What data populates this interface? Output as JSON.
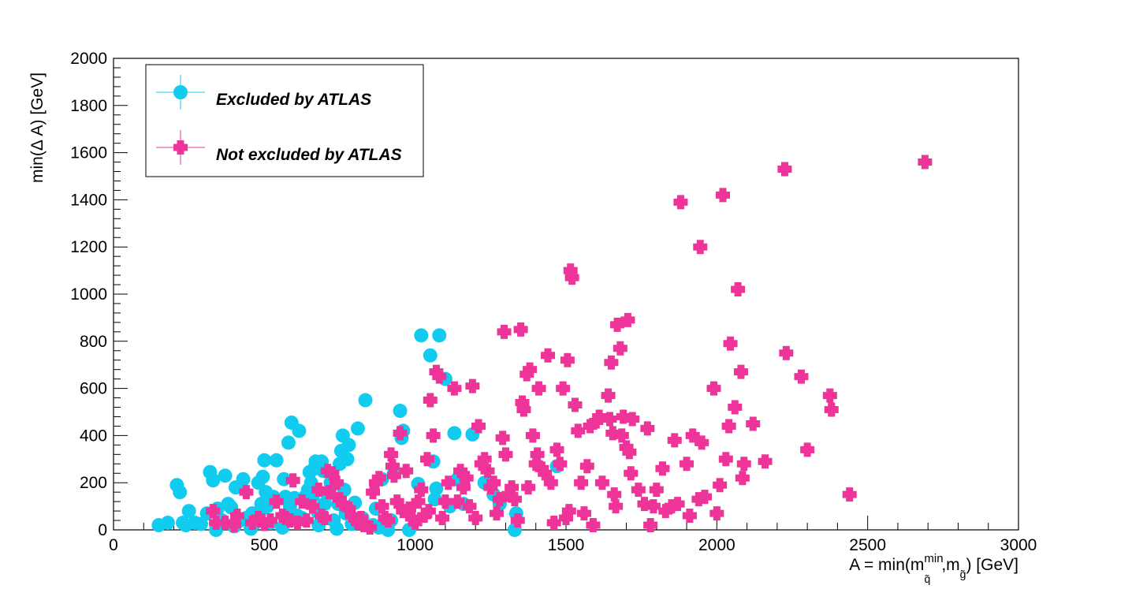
{
  "chart_data": {
    "type": "scatter",
    "title": "",
    "xlabel_prefix": "A = min(m",
    "xlabel_sup": "min",
    "xlabel_sub1": "q̃",
    "xlabel_mid": ",m",
    "xlabel_sub2": "g̃",
    "xlabel_suffix": ") [GeV]",
    "ylabel": "min(Δ A) [GeV]",
    "xlim": [
      0,
      3000
    ],
    "ylim": [
      0,
      2000
    ],
    "x_ticks": [
      "0",
      "500",
      "1000",
      "1500",
      "2000",
      "2500",
      "3000"
    ],
    "y_ticks": [
      "0",
      "200",
      "400",
      "600",
      "800",
      "1000",
      "1200",
      "1400",
      "1600",
      "1800",
      "2000"
    ],
    "grid": false,
    "legend_position": "top-left",
    "series": [
      {
        "name": "Excluded by ATLAS",
        "marker": "circle",
        "color": "#11CCEE",
        "points": [
          [
            150,
            20
          ],
          [
            180,
            30
          ],
          [
            210,
            190
          ],
          [
            220,
            160
          ],
          [
            230,
            30
          ],
          [
            240,
            20
          ],
          [
            250,
            80
          ],
          [
            270,
            30
          ],
          [
            290,
            25
          ],
          [
            310,
            70
          ],
          [
            320,
            245
          ],
          [
            330,
            210
          ],
          [
            340,
            0
          ],
          [
            345,
            90
          ],
          [
            360,
            40
          ],
          [
            370,
            230
          ],
          [
            380,
            110
          ],
          [
            390,
            95
          ],
          [
            400,
            15
          ],
          [
            405,
            180
          ],
          [
            420,
            40
          ],
          [
            430,
            215
          ],
          [
            440,
            50
          ],
          [
            455,
            5
          ],
          [
            460,
            70
          ],
          [
            470,
            30
          ],
          [
            480,
            200
          ],
          [
            485,
            75
          ],
          [
            490,
            110
          ],
          [
            495,
            225
          ],
          [
            500,
            295
          ],
          [
            505,
            160
          ],
          [
            510,
            100
          ],
          [
            520,
            30
          ],
          [
            530,
            140
          ],
          [
            540,
            295
          ],
          [
            560,
            10
          ],
          [
            565,
            215
          ],
          [
            570,
            140
          ],
          [
            575,
            40
          ],
          [
            580,
            370
          ],
          [
            585,
            100
          ],
          [
            590,
            455
          ],
          [
            600,
            135
          ],
          [
            610,
            60
          ],
          [
            615,
            420
          ],
          [
            625,
            50
          ],
          [
            635,
            140
          ],
          [
            645,
            170
          ],
          [
            650,
            245
          ],
          [
            655,
            200
          ],
          [
            660,
            140
          ],
          [
            665,
            260
          ],
          [
            670,
            290
          ],
          [
            675,
            80
          ],
          [
            680,
            20
          ],
          [
            690,
            290
          ],
          [
            695,
            250
          ],
          [
            700,
            110
          ],
          [
            710,
            150
          ],
          [
            720,
            200
          ],
          [
            730,
            40
          ],
          [
            740,
            5
          ],
          [
            745,
            110
          ],
          [
            750,
            280
          ],
          [
            755,
            335
          ],
          [
            760,
            400
          ],
          [
            765,
            170
          ],
          [
            770,
            70
          ],
          [
            775,
            300
          ],
          [
            780,
            360
          ],
          [
            790,
            25
          ],
          [
            800,
            115
          ],
          [
            810,
            430
          ],
          [
            825,
            50
          ],
          [
            835,
            550
          ],
          [
            860,
            20
          ],
          [
            870,
            90
          ],
          [
            880,
            10
          ],
          [
            890,
            215
          ],
          [
            910,
            0
          ],
          [
            920,
            40
          ],
          [
            930,
            240
          ],
          [
            950,
            505
          ],
          [
            955,
            390
          ],
          [
            960,
            420
          ],
          [
            980,
            0
          ],
          [
            1010,
            195
          ],
          [
            1020,
            825
          ],
          [
            1050,
            740
          ],
          [
            1060,
            290
          ],
          [
            1065,
            130
          ],
          [
            1070,
            175
          ],
          [
            1080,
            825
          ],
          [
            1100,
            640
          ],
          [
            1115,
            100
          ],
          [
            1130,
            410
          ],
          [
            1140,
            215
          ],
          [
            1160,
            110
          ],
          [
            1190,
            405
          ],
          [
            1230,
            200
          ],
          [
            1260,
            150
          ],
          [
            1280,
            110
          ],
          [
            1330,
            0
          ],
          [
            1335,
            70
          ],
          [
            1470,
            270
          ]
        ]
      },
      {
        "name": "Not excluded by ATLAS",
        "marker": "cross",
        "color": "#EE3399",
        "points": [
          [
            330,
            80
          ],
          [
            340,
            30
          ],
          [
            370,
            30
          ],
          [
            400,
            20
          ],
          [
            410,
            60
          ],
          [
            440,
            160
          ],
          [
            460,
            30
          ],
          [
            480,
            50
          ],
          [
            490,
            40
          ],
          [
            500,
            25
          ],
          [
            520,
            40
          ],
          [
            540,
            120
          ],
          [
            560,
            60
          ],
          [
            570,
            50
          ],
          [
            585,
            40
          ],
          [
            595,
            210
          ],
          [
            610,
            30
          ],
          [
            625,
            120
          ],
          [
            640,
            40
          ],
          [
            660,
            100
          ],
          [
            680,
            170
          ],
          [
            690,
            60
          ],
          [
            700,
            50
          ],
          [
            710,
            250
          ],
          [
            715,
            160
          ],
          [
            725,
            240
          ],
          [
            740,
            200
          ],
          [
            750,
            130
          ],
          [
            760,
            110
          ],
          [
            780,
            90
          ],
          [
            790,
            60
          ],
          [
            810,
            30
          ],
          [
            820,
            50
          ],
          [
            830,
            20
          ],
          [
            850,
            10
          ],
          [
            860,
            160
          ],
          [
            870,
            200
          ],
          [
            880,
            220
          ],
          [
            890,
            100
          ],
          [
            900,
            50
          ],
          [
            910,
            40
          ],
          [
            920,
            320
          ],
          [
            925,
            270
          ],
          [
            930,
            230
          ],
          [
            940,
            120
          ],
          [
            950,
            410
          ],
          [
            960,
            80
          ],
          [
            970,
            250
          ],
          [
            980,
            90
          ],
          [
            990,
            50
          ],
          [
            1000,
            30
          ],
          [
            1010,
            120
          ],
          [
            1020,
            170
          ],
          [
            1030,
            60
          ],
          [
            1040,
            300
          ],
          [
            1045,
            80
          ],
          [
            1050,
            550
          ],
          [
            1060,
            400
          ],
          [
            1070,
            670
          ],
          [
            1080,
            650
          ],
          [
            1090,
            50
          ],
          [
            1100,
            120
          ],
          [
            1110,
            200
          ],
          [
            1130,
            600
          ],
          [
            1140,
            120
          ],
          [
            1150,
            250
          ],
          [
            1160,
            180
          ],
          [
            1170,
            220
          ],
          [
            1180,
            100
          ],
          [
            1190,
            610
          ],
          [
            1200,
            50
          ],
          [
            1210,
            440
          ],
          [
            1220,
            280
          ],
          [
            1230,
            300
          ],
          [
            1240,
            250
          ],
          [
            1250,
            180
          ],
          [
            1260,
            200
          ],
          [
            1270,
            70
          ],
          [
            1280,
            130
          ],
          [
            1290,
            390
          ],
          [
            1295,
            840
          ],
          [
            1300,
            320
          ],
          [
            1310,
            150
          ],
          [
            1320,
            180
          ],
          [
            1330,
            130
          ],
          [
            1340,
            40
          ],
          [
            1350,
            850
          ],
          [
            1355,
            540
          ],
          [
            1360,
            510
          ],
          [
            1370,
            660
          ],
          [
            1375,
            180
          ],
          [
            1380,
            680
          ],
          [
            1390,
            400
          ],
          [
            1400,
            280
          ],
          [
            1405,
            320
          ],
          [
            1410,
            600
          ],
          [
            1420,
            260
          ],
          [
            1430,
            240
          ],
          [
            1440,
            740
          ],
          [
            1450,
            200
          ],
          [
            1460,
            30
          ],
          [
            1470,
            340
          ],
          [
            1480,
            280
          ],
          [
            1490,
            600
          ],
          [
            1500,
            50
          ],
          [
            1505,
            720
          ],
          [
            1510,
            80
          ],
          [
            1515,
            1100
          ],
          [
            1520,
            1070
          ],
          [
            1530,
            530
          ],
          [
            1540,
            420
          ],
          [
            1550,
            200
          ],
          [
            1560,
            70
          ],
          [
            1570,
            270
          ],
          [
            1580,
            440
          ],
          [
            1590,
            20
          ],
          [
            1600,
            460
          ],
          [
            1610,
            480
          ],
          [
            1620,
            200
          ],
          [
            1640,
            570
          ],
          [
            1645,
            470
          ],
          [
            1650,
            710
          ],
          [
            1655,
            410
          ],
          [
            1660,
            150
          ],
          [
            1665,
            100
          ],
          [
            1670,
            870
          ],
          [
            1680,
            770
          ],
          [
            1685,
            400
          ],
          [
            1690,
            480
          ],
          [
            1700,
            350
          ],
          [
            1705,
            890
          ],
          [
            1710,
            330
          ],
          [
            1715,
            240
          ],
          [
            1720,
            470
          ],
          [
            1740,
            170
          ],
          [
            1760,
            110
          ],
          [
            1770,
            430
          ],
          [
            1780,
            20
          ],
          [
            1790,
            100
          ],
          [
            1800,
            170
          ],
          [
            1820,
            260
          ],
          [
            1830,
            80
          ],
          [
            1850,
            100
          ],
          [
            1860,
            380
          ],
          [
            1870,
            110
          ],
          [
            1880,
            1390
          ],
          [
            1900,
            280
          ],
          [
            1910,
            60
          ],
          [
            1920,
            400
          ],
          [
            1940,
            130
          ],
          [
            1945,
            1200
          ],
          [
            1950,
            370
          ],
          [
            1960,
            140
          ],
          [
            1990,
            600
          ],
          [
            2000,
            70
          ],
          [
            2010,
            190
          ],
          [
            2020,
            1420
          ],
          [
            2030,
            300
          ],
          [
            2040,
            440
          ],
          [
            2045,
            790
          ],
          [
            2060,
            520
          ],
          [
            2070,
            1020
          ],
          [
            2080,
            670
          ],
          [
            2085,
            220
          ],
          [
            2090,
            280
          ],
          [
            2120,
            450
          ],
          [
            2160,
            290
          ],
          [
            2225,
            1530
          ],
          [
            2230,
            750
          ],
          [
            2280,
            650
          ],
          [
            2300,
            340
          ],
          [
            2375,
            570
          ],
          [
            2380,
            510
          ],
          [
            2440,
            150
          ],
          [
            2690,
            1560
          ]
        ]
      }
    ]
  }
}
